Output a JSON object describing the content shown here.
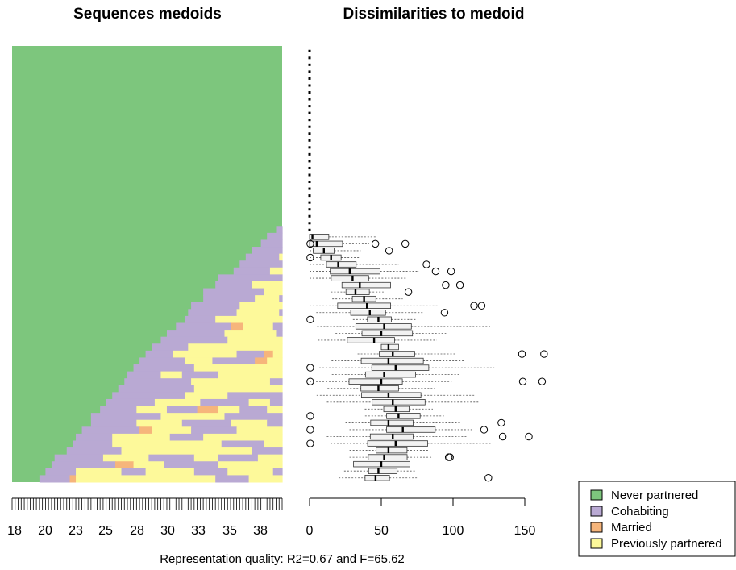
{
  "chart_data": [
    {
      "type": "heatmap",
      "title": "Sequences medoids",
      "x_tick_labels": [
        "18",
        "20",
        "23",
        "25",
        "28",
        "30",
        "33",
        "35",
        "38"
      ],
      "n_sequences": 63,
      "n_time_points": 89,
      "sequence_fill": "stacked index plot of sequence medoids ordered by age of leaving 'Never partnered' (about 27 at the top, about 18 at the bottom)",
      "states": [
        {
          "name": "Never partnered",
          "color": "#7dc67d"
        },
        {
          "name": "Cohabiting",
          "color": "#b9a9d3"
        },
        {
          "name": "Married",
          "color": "#f6b57b"
        },
        {
          "name": "Previously partnered",
          "color": "#fdf99a"
        }
      ]
    },
    {
      "type": "box",
      "title": "Dissimilarities to medoid",
      "x_ticks": [
        0,
        50,
        100,
        150
      ],
      "xlim": [
        0,
        165
      ],
      "n_groups": 63,
      "medians": [
        0,
        0,
        0,
        0,
        0,
        0,
        0,
        0,
        0,
        0,
        0,
        0,
        0,
        0,
        0,
        0,
        0,
        0,
        0,
        0,
        0,
        0,
        0,
        0,
        0,
        0,
        0,
        2,
        5,
        10,
        15,
        20,
        28,
        30,
        35,
        32,
        38,
        40,
        42,
        48,
        52,
        50,
        45,
        55,
        58,
        55,
        60,
        52,
        50,
        48,
        55,
        58,
        60,
        62,
        55,
        65,
        58,
        60,
        55,
        52,
        50,
        48,
        46
      ]
    }
  ],
  "legend": {
    "items": [
      "Never partnered",
      "Cohabiting",
      "Married",
      "Previously partnered"
    ]
  },
  "footer": {
    "text": "Representation quality: R2=0.67 and F=65.62"
  }
}
